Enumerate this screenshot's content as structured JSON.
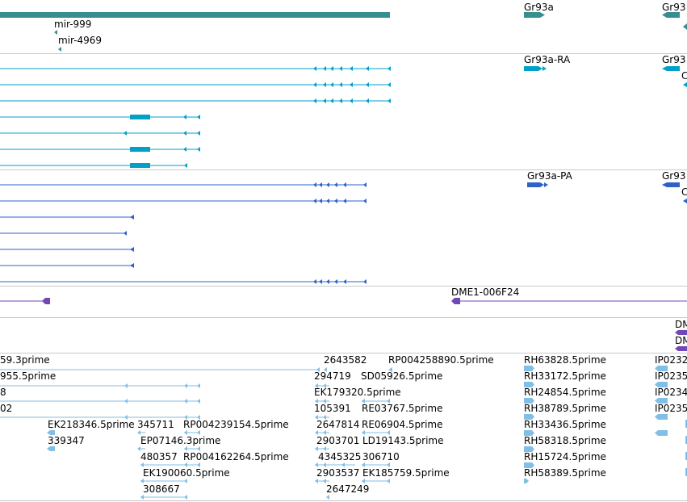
{
  "colors": {
    "gene": "#388e8e",
    "mrna": "#00a0c8",
    "protein": "#2e62c8",
    "bac": "#7048b8",
    "est": "#82bfe6",
    "divider": "#c8c8c8"
  },
  "tracks": {
    "gene": {
      "labels": [
        {
          "id": "mir999",
          "text": "mir-999"
        },
        {
          "id": "mir4969",
          "text": "mir-4969"
        },
        {
          "id": "gr93a",
          "text": "Gr93a"
        },
        {
          "id": "gr93_right",
          "text": "Gr93"
        }
      ]
    },
    "mrna": {
      "labels": [
        {
          "id": "gr93a_ra",
          "text": "Gr93a-RA"
        },
        {
          "id": "gr93_right",
          "text": "Gr93"
        },
        {
          "id": "c_frag",
          "text": "C"
        }
      ]
    },
    "protein": {
      "labels": [
        {
          "id": "gr93a_pa",
          "text": "Gr93a-PA"
        },
        {
          "id": "gr93_right",
          "text": "Gr93"
        },
        {
          "id": "c_frag",
          "text": "C"
        }
      ]
    },
    "bac": {
      "labels": [
        {
          "id": "dme1_006f24",
          "text": "DME1-006F24"
        }
      ]
    },
    "bac2": {
      "labels": [
        {
          "id": "dm_a",
          "text": "DM"
        },
        {
          "id": "dm_b",
          "text": "DM"
        }
      ]
    },
    "est": {
      "labels": [
        {
          "id": "e1",
          "text": "59.3prime"
        },
        {
          "id": "e2",
          "text": "955.5prime"
        },
        {
          "id": "e3",
          "text": "8"
        },
        {
          "id": "e4",
          "text": "02"
        },
        {
          "id": "e5",
          "text": "EK218346.5prime"
        },
        {
          "id": "e6",
          "text": "339347"
        },
        {
          "id": "e7",
          "text": "345711"
        },
        {
          "id": "e8",
          "text": "RP004239154.5prime"
        },
        {
          "id": "e9",
          "text": "EP07146.3prime"
        },
        {
          "id": "e10",
          "text": "480357"
        },
        {
          "id": "e11",
          "text": "RP004162264.5prime"
        },
        {
          "id": "e12",
          "text": "EK190060.5prime"
        },
        {
          "id": "e13",
          "text": "308667"
        },
        {
          "id": "e14",
          "text": "2643582"
        },
        {
          "id": "e15",
          "text": "RP004258890.5prime"
        },
        {
          "id": "e16",
          "text": "294719"
        },
        {
          "id": "e17",
          "text": "SD05926.5prime"
        },
        {
          "id": "e18",
          "text": "EK179320.5prime"
        },
        {
          "id": "e19",
          "text": "105391"
        },
        {
          "id": "e20",
          "text": "RE03767.5prime"
        },
        {
          "id": "e21",
          "text": "2647814"
        },
        {
          "id": "e22",
          "text": "RE06904.5prime"
        },
        {
          "id": "e23",
          "text": "2903701"
        },
        {
          "id": "e24",
          "text": "LD19143.5prime"
        },
        {
          "id": "e25",
          "text": "4345325"
        },
        {
          "id": "e26",
          "text": "306710"
        },
        {
          "id": "e27",
          "text": "2903537"
        },
        {
          "id": "e28",
          "text": "EK185759.5prime"
        },
        {
          "id": "e29",
          "text": "2647249"
        },
        {
          "id": "e30",
          "text": "RH63828.5prime"
        },
        {
          "id": "e31",
          "text": "RH33172.5prime"
        },
        {
          "id": "e32",
          "text": "RH24854.5prime"
        },
        {
          "id": "e33",
          "text": "RH38789.5prime"
        },
        {
          "id": "e34",
          "text": "RH33436.5prime"
        },
        {
          "id": "e35",
          "text": "RH58318.5prime"
        },
        {
          "id": "e36",
          "text": "RH15724.5prime"
        },
        {
          "id": "e37",
          "text": "RH58389.5prime"
        },
        {
          "id": "e38",
          "text": "IP0232"
        },
        {
          "id": "e39",
          "text": "IP0235"
        },
        {
          "id": "e40",
          "text": "IP0234"
        },
        {
          "id": "e41",
          "text": "IP0235"
        }
      ]
    }
  }
}
